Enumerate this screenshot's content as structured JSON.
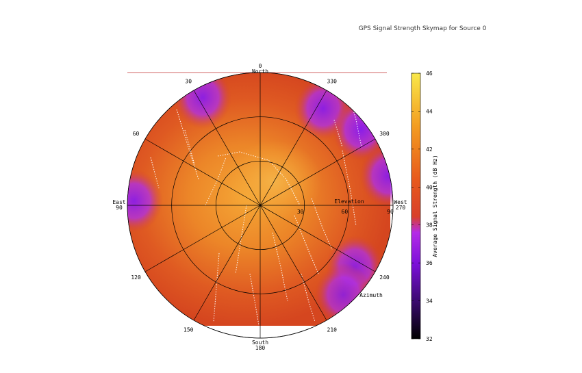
{
  "chart_data": {
    "type": "heatmap",
    "projection": "polar-skymap",
    "title": "GPS Signal Strength Skymap for Source 0",
    "colorbar": {
      "label": "Average Signal Strength (dB Hz)",
      "range": [
        32,
        46
      ],
      "ticks": [
        "32",
        "34",
        "36",
        "38",
        "40",
        "42",
        "44",
        "46"
      ],
      "colors": [
        "#000000",
        "#3a0a6e",
        "#7b10d8",
        "#b52be8",
        "#d8402a",
        "#e85a1c",
        "#f39c20",
        "#f9e84a"
      ]
    },
    "azimuth": {
      "label": "Azimuth",
      "ticks": [
        "30",
        "60",
        "120",
        "150",
        "210",
        "240",
        "300",
        "330"
      ],
      "tick_values": [
        30,
        60,
        120,
        150,
        210,
        240,
        300,
        330
      ]
    },
    "cardinals": [
      {
        "name": "North",
        "deg": "0",
        "az": 0
      },
      {
        "name": "East",
        "deg": "90",
        "az": 90
      },
      {
        "name": "South",
        "deg": "180",
        "az": 180
      },
      {
        "name": "West",
        "deg": "270",
        "az": 270
      }
    ],
    "elevation": {
      "label": "Elevation",
      "ticks": [
        "30",
        "60",
        "90"
      ],
      "tick_values": [
        30,
        60,
        90
      ]
    },
    "overall_level_db": 41.5,
    "zenith_level_db": 43.5,
    "hotspots": [
      {
        "az": 28,
        "r": 0.92,
        "level_db": 35.5
      },
      {
        "az": 327,
        "r": 0.87,
        "level_db": 35.5
      },
      {
        "az": 307,
        "r": 0.95,
        "level_db": 35.0
      },
      {
        "az": 283,
        "r": 0.99,
        "level_db": 35.5
      },
      {
        "az": 88,
        "r": 0.95,
        "level_db": 35.5
      },
      {
        "az": 237,
        "r": 0.85,
        "level_db": 36.0
      },
      {
        "az": 223,
        "r": 0.92,
        "level_db": 36.5
      }
    ]
  }
}
